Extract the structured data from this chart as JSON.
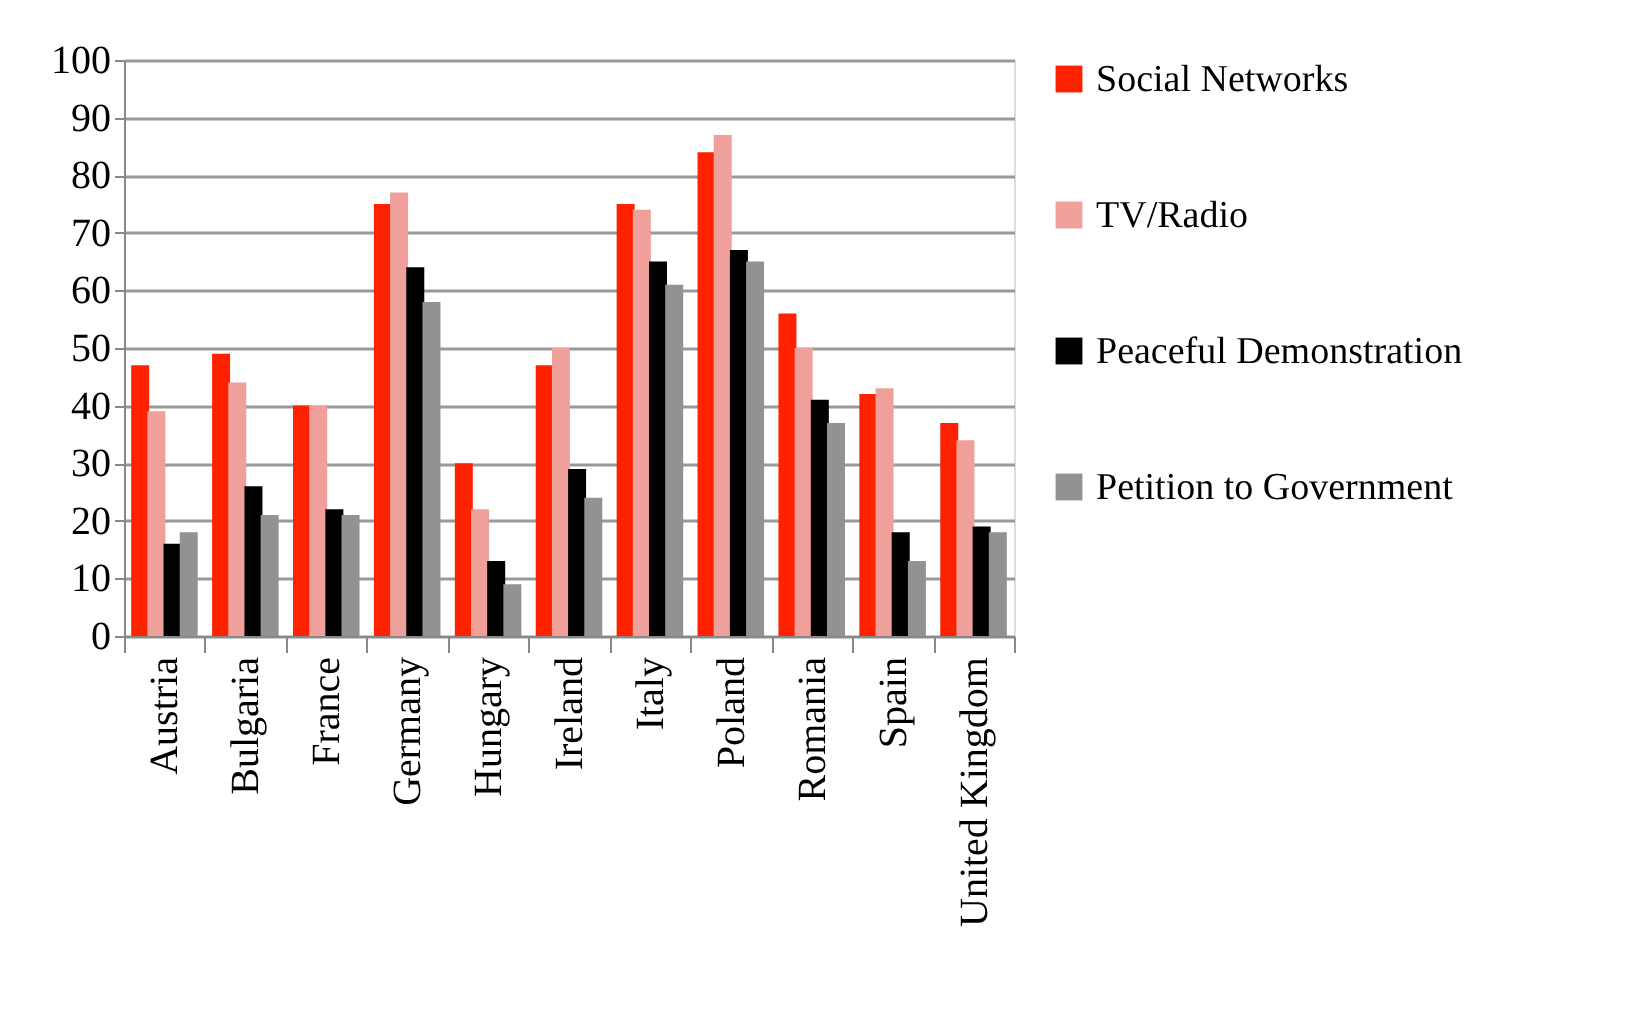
{
  "chart_data": {
    "type": "bar",
    "categories": [
      "Austria",
      "Bulgaria",
      "France",
      "Germany",
      "Hungary",
      "Ireland",
      "Italy",
      "Poland",
      "Romania",
      "Spain",
      "United Kingdom"
    ],
    "series": [
      {
        "name": "Social Networks",
        "color": "#ff2200",
        "values": [
          47,
          49,
          40,
          75,
          30,
          47,
          75,
          84,
          56,
          42,
          37
        ]
      },
      {
        "name": "TV/Radio",
        "color": "#f0a09a",
        "values": [
          39,
          44,
          40,
          77,
          22,
          50,
          74,
          87,
          50,
          43,
          34
        ]
      },
      {
        "name": "Peaceful Demonstration",
        "color": "#000000",
        "values": [
          16,
          26,
          22,
          64,
          13,
          29,
          65,
          67,
          41,
          18,
          19
        ]
      },
      {
        "name": "Petition to Government",
        "color": "#929292",
        "values": [
          18,
          21,
          21,
          58,
          9,
          24,
          61,
          65,
          37,
          13,
          18
        ]
      }
    ],
    "ylim": [
      0,
      100
    ],
    "yticks": [
      0,
      10,
      20,
      30,
      40,
      50,
      60,
      70,
      80,
      90,
      100
    ],
    "grid": "y",
    "legend": "right"
  }
}
